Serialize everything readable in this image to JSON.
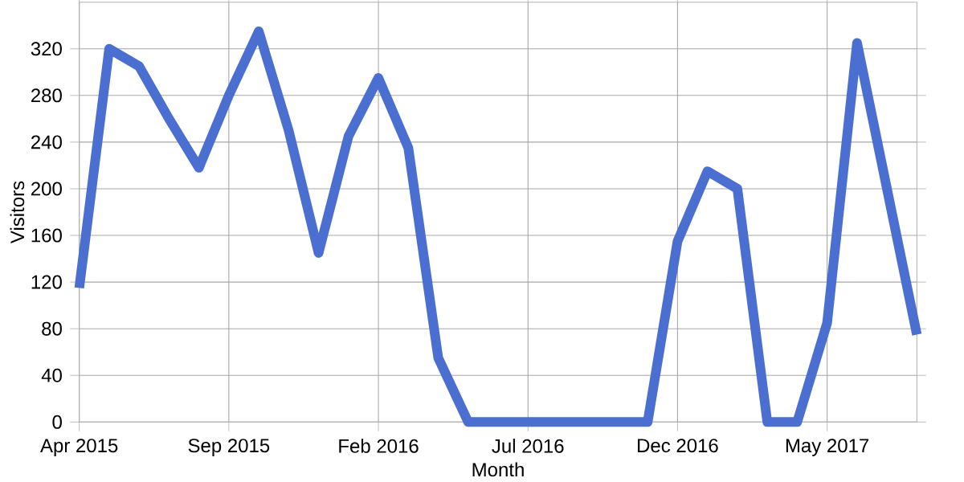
{
  "chart_data": {
    "type": "line",
    "xlabel": "Month",
    "ylabel": "Visitors",
    "x": [
      "2015-04",
      "2015-05",
      "2015-06",
      "2015-07",
      "2015-08",
      "2015-09",
      "2015-10",
      "2015-11",
      "2015-12",
      "2016-01",
      "2016-02",
      "2016-03",
      "2016-04",
      "2016-05",
      "2016-06",
      "2016-07",
      "2016-08",
      "2016-09",
      "2016-10",
      "2016-11",
      "2016-12",
      "2017-01",
      "2017-02",
      "2017-03",
      "2017-04",
      "2017-05",
      "2017-06",
      "2017-07",
      "2017-08"
    ],
    "series": [
      {
        "color": "#4a6fd0",
        "values": [
          115,
          320,
          305,
          260,
          218,
          280,
          335,
          250,
          145,
          245,
          295,
          235,
          55,
          0,
          0,
          0,
          0,
          0,
          0,
          0,
          155,
          215,
          200,
          0,
          0,
          85,
          325,
          200,
          75
        ]
      }
    ],
    "xlim": [
      "2015-04",
      "2017-08"
    ],
    "xticks": [
      {
        "value": "2015-04",
        "label": "Apr 2015"
      },
      {
        "value": "2015-09",
        "label": "Sep 2015"
      },
      {
        "value": "2016-02",
        "label": "Feb 2016"
      },
      {
        "value": "2016-07",
        "label": "Jul 2016"
      },
      {
        "value": "2016-12",
        "label": "Dec 2016"
      },
      {
        "value": "2017-05",
        "label": "May 2017"
      }
    ],
    "ylim": [
      0,
      360
    ],
    "yticks": [
      0,
      40,
      80,
      120,
      160,
      200,
      240,
      280,
      320
    ],
    "grid": true,
    "marker": "none",
    "line_style": "solid"
  }
}
